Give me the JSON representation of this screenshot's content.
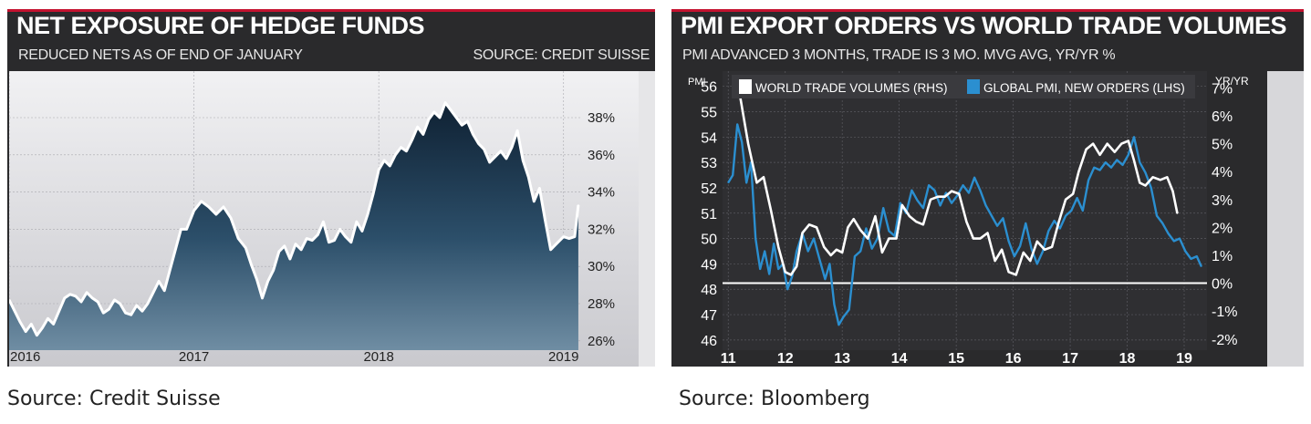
{
  "chart_data": [
    {
      "type": "area",
      "title": "NET EXPOSURE OF HEDGE FUNDS",
      "subtitle": "REDUCED NETS AS OF END OF JANUARY",
      "source_label": "SOURCE: CREDIT SUISSE",
      "x_ticks": [
        "2016",
        "2017",
        "2018",
        "2019"
      ],
      "y_ticks": [
        "26%",
        "28%",
        "30%",
        "32%",
        "34%",
        "36%",
        "38%"
      ],
      "ylim": [
        25.5,
        40.5
      ],
      "xlim": [
        2016.0,
        2019.1
      ],
      "series": [
        {
          "x": [
            2016.0,
            2016.03,
            2016.06,
            2016.09,
            2016.12,
            2016.15,
            2016.18,
            2016.21,
            2016.24,
            2016.27,
            2016.3,
            2016.33,
            2016.36,
            2016.39,
            2016.42,
            2016.45,
            2016.48,
            2016.51,
            2016.54,
            2016.57,
            2016.6,
            2016.63,
            2016.66,
            2016.69,
            2016.72,
            2016.75,
            2016.78,
            2016.81,
            2016.84,
            2016.87,
            2016.9,
            2016.93,
            2016.96,
            2017.0,
            2017.04,
            2017.08,
            2017.12,
            2017.16,
            2017.2,
            2017.24,
            2017.28,
            2017.31,
            2017.34,
            2017.37,
            2017.4,
            2017.43,
            2017.46,
            2017.49,
            2017.52,
            2017.55,
            2017.58,
            2017.61,
            2017.64,
            2017.67,
            2017.7,
            2017.73,
            2017.76,
            2017.79,
            2017.82,
            2017.85,
            2017.88,
            2017.91,
            2017.94,
            2017.97,
            2018.0,
            2018.03,
            2018.06,
            2018.09,
            2018.12,
            2018.15,
            2018.18,
            2018.21,
            2018.24,
            2018.27,
            2018.3,
            2018.33,
            2018.36,
            2018.39,
            2018.42,
            2018.45,
            2018.48,
            2018.51,
            2018.54,
            2018.57,
            2018.6,
            2018.63,
            2018.66,
            2018.69,
            2018.72,
            2018.75,
            2018.78,
            2018.81,
            2018.84,
            2018.87,
            2018.9,
            2018.93,
            2018.96,
            2019.0,
            2019.03,
            2019.06,
            2019.08
          ],
          "values": [
            28.2,
            27.6,
            27.0,
            26.5,
            26.9,
            26.3,
            26.7,
            27.2,
            26.9,
            27.6,
            28.3,
            28.5,
            28.4,
            28.1,
            28.6,
            28.3,
            28.1,
            27.5,
            27.7,
            28.2,
            28.0,
            27.5,
            27.4,
            27.9,
            27.6,
            28.0,
            28.6,
            29.2,
            28.7,
            29.8,
            30.9,
            32.0,
            32.0,
            33.0,
            33.5,
            33.2,
            32.8,
            33.2,
            32.6,
            31.5,
            31.0,
            30.1,
            29.3,
            28.3,
            29.2,
            29.8,
            30.8,
            31.1,
            30.4,
            31.2,
            30.9,
            31.5,
            31.4,
            31.7,
            32.4,
            31.3,
            31.4,
            32.0,
            31.6,
            31.3,
            32.4,
            31.9,
            32.8,
            33.9,
            35.2,
            35.7,
            35.4,
            36.0,
            36.4,
            36.2,
            36.8,
            37.5,
            37.1,
            37.9,
            38.3,
            38.0,
            38.8,
            38.4,
            38.0,
            37.6,
            37.8,
            37.1,
            36.6,
            36.3,
            35.6,
            35.9,
            36.2,
            35.8,
            36.4,
            37.3,
            35.7,
            34.8,
            33.5,
            34.2,
            32.5,
            30.9,
            31.2,
            31.6,
            31.5,
            31.6,
            33.3
          ]
        }
      ]
    },
    {
      "type": "line",
      "title": "PMI EXPORT ORDERS VS WORLD TRADE VOLUMES",
      "subtitle": "PMI ADVANCED 3 MONTHS, TRADE IS 3 MO. MVG AVG, YR/YR %",
      "y_left_label": "PMI",
      "y_right_label": "YR/YR",
      "x_ticks": [
        "11",
        "12",
        "13",
        "14",
        "15",
        "16",
        "17",
        "18",
        "19"
      ],
      "y_left_ticks": [
        "46",
        "47",
        "48",
        "49",
        "50",
        "51",
        "52",
        "53",
        "54",
        "55",
        "56"
      ],
      "y_right_ticks": [
        "-2%",
        "-1%",
        "0%",
        "1%",
        "2%",
        "3%",
        "4%",
        "5%",
        "6%",
        "7%"
      ],
      "ylim_left": [
        45.6,
        56.6
      ],
      "ylim_right": [
        -2.4,
        7.6
      ],
      "xlim": [
        10.9,
        19.4
      ],
      "zero_line_value": 0,
      "legend": [
        "WORLD TRADE VOLUMES (RHS)",
        "GLOBAL PMI, NEW ORDERS (LHS)"
      ],
      "legend_position": "top",
      "series": [
        {
          "name": "WORLD TRADE VOLUMES (RHS)",
          "color": "#ffffff",
          "axis": "right",
          "x": [
            11.2,
            11.35,
            11.5,
            11.62,
            11.75,
            11.88,
            12.0,
            12.1,
            12.2,
            12.3,
            12.42,
            12.55,
            12.68,
            12.8,
            12.9,
            13.0,
            13.1,
            13.2,
            13.32,
            13.45,
            13.58,
            13.7,
            13.82,
            13.95,
            14.05,
            14.18,
            14.3,
            14.42,
            14.55,
            14.68,
            14.8,
            14.92,
            15.05,
            15.18,
            15.3,
            15.42,
            15.55,
            15.68,
            15.8,
            15.92,
            16.05,
            16.18,
            16.3,
            16.42,
            16.55,
            16.68,
            16.8,
            16.92,
            17.05,
            17.15,
            17.28,
            17.4,
            17.52,
            17.65,
            17.78,
            17.9,
            18.02,
            18.12,
            18.22,
            18.32,
            18.45,
            18.58,
            18.7,
            18.8,
            18.88
          ],
          "values": [
            6.8,
            5.0,
            3.6,
            3.8,
            2.6,
            1.3,
            0.4,
            0.3,
            0.6,
            1.8,
            2.1,
            2.0,
            1.3,
            1.0,
            1.2,
            1.1,
            2.0,
            2.3,
            1.9,
            1.6,
            2.4,
            1.1,
            1.6,
            1.6,
            2.8,
            2.4,
            2.2,
            2.1,
            3.0,
            3.1,
            3.1,
            3.3,
            3.2,
            2.2,
            1.6,
            1.6,
            1.8,
            0.8,
            1.2,
            0.4,
            0.3,
            1.1,
            0.8,
            1.5,
            1.2,
            1.3,
            2.2,
            3.0,
            3.2,
            4.0,
            4.8,
            5.0,
            4.6,
            5.0,
            4.7,
            5.0,
            5.1,
            4.4,
            3.6,
            3.5,
            3.8,
            3.7,
            3.8,
            3.3,
            2.5
          ]
        },
        {
          "name": "GLOBAL PMI, NEW ORDERS (LHS)",
          "color": "#2b8fd0",
          "axis": "left",
          "x": [
            11.0,
            11.08,
            11.16,
            11.24,
            11.32,
            11.4,
            11.48,
            11.56,
            11.64,
            11.72,
            11.8,
            11.88,
            11.96,
            12.04,
            12.12,
            12.2,
            12.3,
            12.4,
            12.5,
            12.6,
            12.7,
            12.78,
            12.86,
            12.94,
            13.02,
            13.12,
            13.22,
            13.32,
            13.42,
            13.52,
            13.62,
            13.72,
            13.82,
            13.92,
            14.02,
            14.12,
            14.22,
            14.32,
            14.42,
            14.52,
            14.62,
            14.72,
            14.82,
            14.92,
            15.02,
            15.12,
            15.22,
            15.32,
            15.42,
            15.52,
            15.62,
            15.72,
            15.82,
            15.92,
            16.02,
            16.12,
            16.22,
            16.32,
            16.42,
            16.52,
            16.62,
            16.72,
            16.82,
            16.92,
            17.02,
            17.12,
            17.22,
            17.32,
            17.42,
            17.52,
            17.62,
            17.72,
            17.82,
            17.92,
            18.02,
            18.12,
            18.22,
            18.32,
            18.42,
            18.52,
            18.62,
            18.72,
            18.82,
            18.92,
            19.02,
            19.12,
            19.22,
            19.3
          ],
          "values": [
            52.2,
            52.5,
            54.5,
            53.8,
            52.2,
            53.0,
            50.0,
            48.8,
            49.5,
            48.6,
            49.8,
            48.8,
            49.0,
            48.0,
            48.5,
            49.5,
            50.2,
            49.5,
            50.0,
            49.2,
            48.4,
            49.0,
            47.4,
            46.6,
            46.9,
            47.2,
            49.3,
            49.5,
            50.4,
            49.6,
            50.0,
            51.2,
            50.3,
            50.1,
            51.4,
            51.0,
            51.9,
            51.5,
            51.2,
            52.1,
            51.9,
            51.3,
            51.8,
            51.4,
            51.7,
            52.1,
            51.8,
            52.4,
            51.9,
            51.3,
            50.9,
            50.5,
            50.8,
            49.9,
            49.3,
            49.7,
            50.6,
            49.6,
            49.0,
            49.5,
            50.3,
            50.7,
            50.4,
            50.9,
            51.1,
            51.6,
            51.1,
            52.3,
            52.8,
            52.7,
            53.0,
            52.8,
            53.1,
            52.9,
            53.3,
            54.0,
            53.0,
            52.6,
            52.0,
            50.9,
            50.6,
            50.2,
            49.9,
            50.0,
            49.5,
            49.2,
            49.3,
            48.9
          ]
        }
      ]
    }
  ],
  "captions": {
    "left": "Source: Credit Suisse",
    "right": "Source: Bloomberg"
  }
}
